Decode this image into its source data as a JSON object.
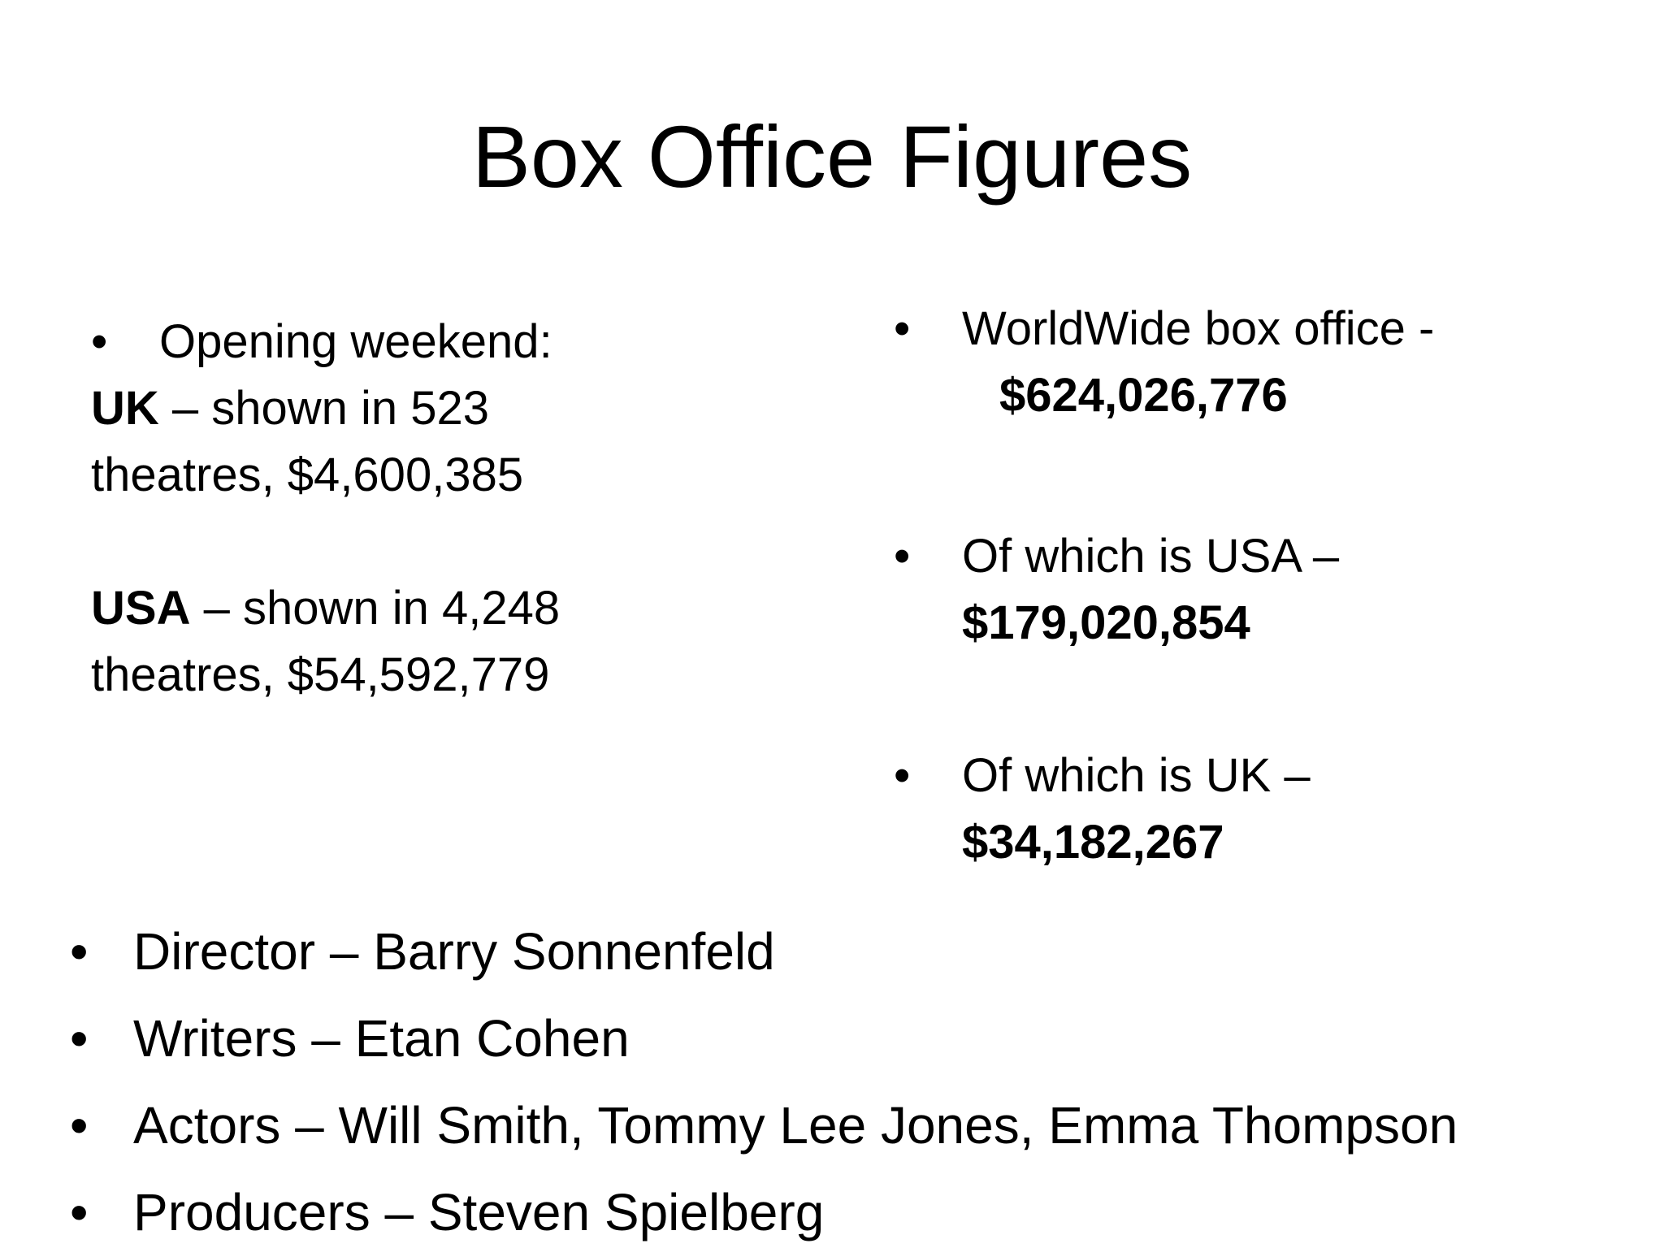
{
  "title": "Box Office Figures",
  "opening": {
    "bullet": "•",
    "heading": "Opening weekend:",
    "uk_label": "UK",
    "uk_line1": " – shown in 523",
    "uk_line2": "theatres, $4,600,385",
    "usa_label": "USA",
    "usa_line1": " – shown in 4,248",
    "usa_line2": "theatres, $54,592,779"
  },
  "worldwide": [
    {
      "bullet": "•",
      "text": "WorldWide box office -",
      "value": "$624,026,776"
    },
    {
      "bullet": "•",
      "text": "Of which is USA –",
      "value": "$179,020,854"
    },
    {
      "bullet": "•",
      "text": "Of which is UK –",
      "value": "$34,182,267"
    }
  ],
  "credits": [
    {
      "bullet": "•",
      "text": "Director – Barry Sonnenfeld"
    },
    {
      "bullet": "•",
      "text": "Writers –  Etan Cohen"
    },
    {
      "bullet": "•",
      "text": "Actors –  Will Smith, Tommy Lee Jones, Emma Thompson"
    },
    {
      "bullet": "•",
      "text": "Producers –  Steven Spielberg"
    }
  ]
}
